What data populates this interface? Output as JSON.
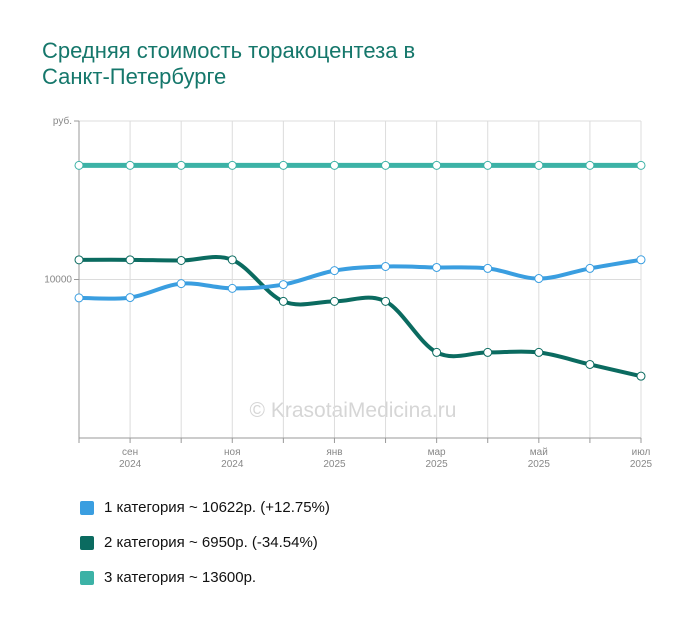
{
  "chart_data": {
    "type": "line",
    "title": "Средняя стоимость торакоцентеза в Санкт-Петербурге",
    "watermark": "© KrasotaiMedicina.ru",
    "categories": [
      null,
      "сен",
      null,
      "ноя",
      null,
      "янв",
      null,
      "мар",
      null,
      "май",
      null,
      "июл"
    ],
    "category_years": [
      null,
      "2024",
      null,
      "2024",
      null,
      "2025",
      null,
      "2025",
      null,
      "2025",
      null,
      "2025"
    ],
    "ylim": [
      5000,
      15000
    ],
    "yticks": [
      {
        "value": 15000,
        "label": "руб."
      },
      10000
    ],
    "grid": true,
    "series": [
      {
        "name": "1 категория ~ 10622р. (+12.75%)",
        "color": "#3a9ee0",
        "values": [
          9420,
          9430,
          9870,
          9720,
          9840,
          10280,
          10410,
          10380,
          10350,
          10030,
          10350,
          10622
        ]
      },
      {
        "name": "2 категория ~ 6950р. (-34.54%)",
        "color": "#0b6b60",
        "values": [
          10620,
          10620,
          10600,
          10620,
          9310,
          9310,
          9310,
          7700,
          7700,
          7700,
          7320,
          6950
        ]
      },
      {
        "name": "3 категория ~ 13600р.",
        "color": "#3cb2a6",
        "values": [
          13600,
          13600,
          13600,
          13600,
          13600,
          13600,
          13600,
          13600,
          13600,
          13600,
          13600,
          13600
        ]
      }
    ]
  }
}
